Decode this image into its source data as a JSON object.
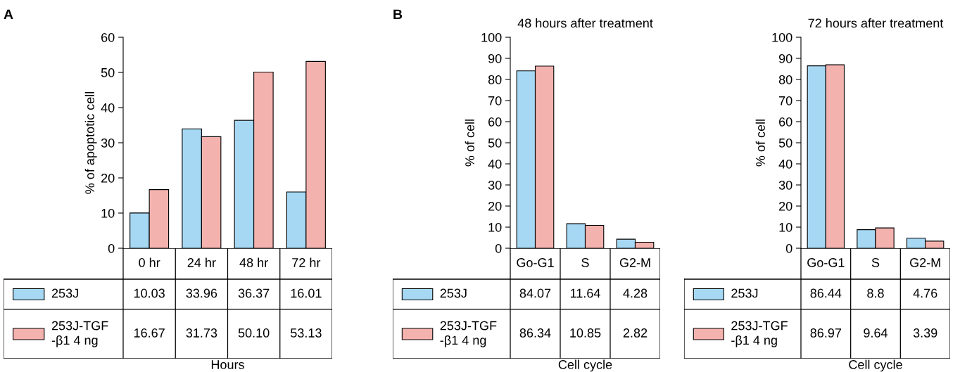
{
  "chart_data": [
    {
      "type": "bar",
      "annotations": [
        "A"
      ],
      "xlabel": "Hours",
      "ylabel": "% of apoptotic cell",
      "categories": [
        "0 hr",
        "24 hr",
        "48 hr",
        "72 hr"
      ],
      "ylim": [
        0,
        60
      ],
      "yticks": [
        0,
        10,
        20,
        30,
        40,
        50,
        60
      ],
      "grid": false,
      "legend": "bottom",
      "series": [
        {
          "name": "253J",
          "color": "#a6d8f4",
          "values": [
            10.03,
            33.96,
            36.37,
            16.01
          ],
          "value_labels": [
            "10.03",
            "33.96",
            "36.37",
            "16.01"
          ]
        },
        {
          "name": "253J-TGF\n-β1 4 ng",
          "color": "#f4b2ae",
          "values": [
            16.67,
            31.73,
            50.1,
            53.13
          ],
          "value_labels": [
            "16.67",
            "31.73",
            "50.10",
            "53.13"
          ]
        }
      ]
    },
    {
      "type": "bar",
      "annotations": [
        "B"
      ],
      "title": "48 hours after treatment",
      "xlabel": "Cell cycle",
      "ylabel": "% of cell",
      "categories": [
        "Go-G1",
        "S",
        "G2-M"
      ],
      "ylim": [
        0,
        100
      ],
      "yticks": [
        0,
        10,
        20,
        30,
        40,
        50,
        60,
        70,
        80,
        90,
        100
      ],
      "grid": false,
      "legend": "bottom",
      "series": [
        {
          "name": "253J",
          "color": "#a6d8f4",
          "values": [
            84.07,
            11.64,
            4.28
          ],
          "value_labels": [
            "84.07",
            "11.64",
            "4.28"
          ]
        },
        {
          "name": "253J-TGF\n-β1 4 ng",
          "color": "#f4b2ae",
          "values": [
            86.34,
            10.85,
            2.82
          ],
          "value_labels": [
            "86.34",
            "10.85",
            "2.82"
          ]
        }
      ]
    },
    {
      "type": "bar",
      "title": "72 hours after treatment",
      "xlabel": "Cell cycle",
      "ylabel": "% of cell",
      "categories": [
        "Go-G1",
        "S",
        "G2-M"
      ],
      "ylim": [
        0,
        100
      ],
      "yticks": [
        0,
        10,
        20,
        30,
        40,
        50,
        60,
        70,
        80,
        90,
        100
      ],
      "grid": false,
      "legend": "bottom",
      "series": [
        {
          "name": "253J",
          "color": "#a6d8f4",
          "values": [
            86.44,
            8.8,
            4.76
          ],
          "value_labels": [
            "86.44",
            "8.8",
            "4.76"
          ]
        },
        {
          "name": "253J-TGF\n-β1 4 ng",
          "color": "#f4b2ae",
          "values": [
            86.97,
            9.64,
            3.39
          ],
          "value_labels": [
            "86.97",
            "9.64",
            "3.39"
          ]
        }
      ]
    }
  ]
}
